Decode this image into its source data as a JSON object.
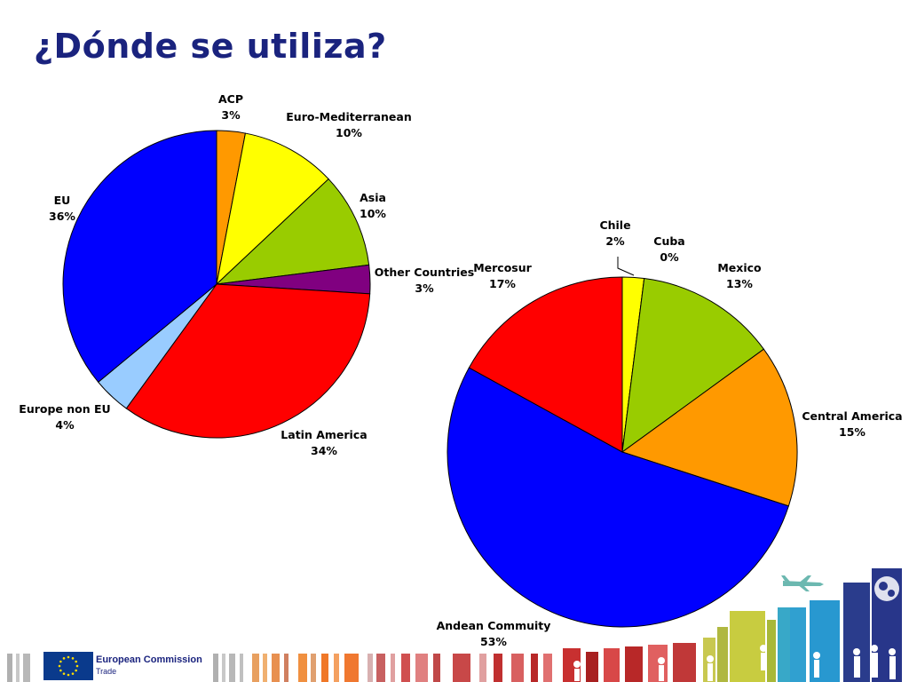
{
  "slide": {
    "title": "¿Dónde se utiliza?",
    "branding": {
      "name": "European Commission",
      "unit": "Trade"
    }
  },
  "chart_data": [
    {
      "type": "pie",
      "start": "12 o'clock",
      "direction": "clockwise",
      "slices": [
        {
          "label": "ACP",
          "value": 3,
          "pct_label": "3%",
          "color": "#FF9900"
        },
        {
          "label": "Euro-Mediterranean",
          "value": 10,
          "pct_label": "10%",
          "color": "#FFFF00"
        },
        {
          "label": "Asia",
          "value": 10,
          "pct_label": "10%",
          "color": "#99CC00"
        },
        {
          "label": "Other Countries",
          "value": 3,
          "pct_label": "3%",
          "color": "#800080"
        },
        {
          "label": "Latin America",
          "value": 34,
          "pct_label": "34%",
          "color": "#FF0000"
        },
        {
          "label": "Europe non EU",
          "value": 4,
          "pct_label": "4%",
          "color": "#99CCFF"
        },
        {
          "label": "EU",
          "value": 36,
          "pct_label": "36%",
          "color": "#0000FF"
        }
      ]
    },
    {
      "type": "pie",
      "start": "12 o'clock",
      "direction": "clockwise",
      "slices": [
        {
          "label": "Chile",
          "value": 2,
          "pct_label": "2%",
          "color": "#FFFF00"
        },
        {
          "label": "Cuba",
          "value": 0,
          "pct_label": "0%",
          "color": "#00CCFF"
        },
        {
          "label": "Mexico",
          "value": 13,
          "pct_label": "13%",
          "color": "#99CC00"
        },
        {
          "label": "Central America",
          "value": 15,
          "pct_label": "15%",
          "color": "#FF9900"
        },
        {
          "label": "Andean Commuity",
          "value": 53,
          "pct_label": "53%",
          "color": "#0000FF"
        },
        {
          "label": "Mercosur",
          "value": 17,
          "pct_label": "17%",
          "color": "#FF0000"
        }
      ]
    }
  ]
}
